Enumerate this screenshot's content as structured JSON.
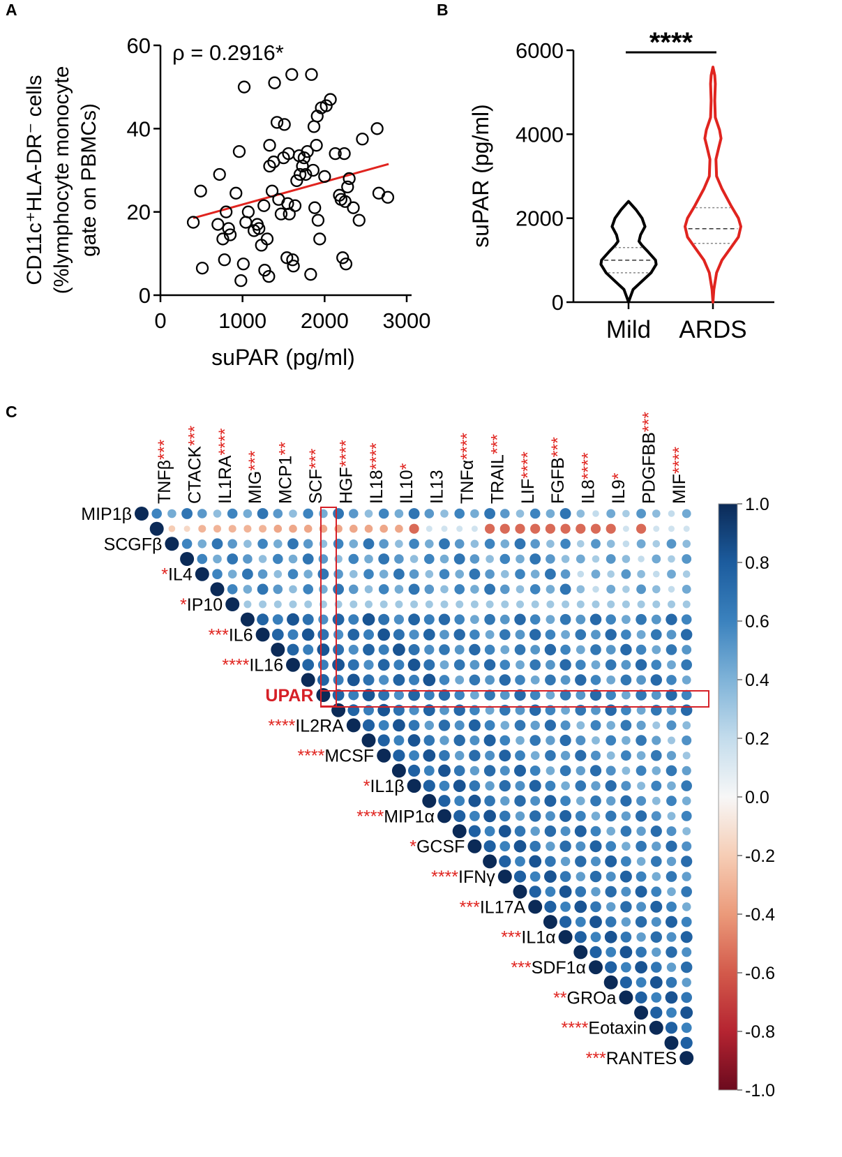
{
  "chart_data": [
    {
      "type": "scatter",
      "panel_label": "A",
      "title": "",
      "annotation": "ρ = 0.2916*",
      "xlabel": "suPAR (pg/ml)",
      "ylabel_line1": "CD11c⁺HLA-DR⁻ cells",
      "ylabel_line2": "(%lymphocyte monocyte",
      "ylabel_line3": "gate on PBMCs)",
      "xlim": [
        0,
        3000
      ],
      "ylim": [
        0,
        60
      ],
      "xticks": [
        "0",
        "1000",
        "2000",
        "3000"
      ],
      "yticks": [
        "0",
        "20",
        "40",
        "60"
      ],
      "points": [
        [
          400,
          17.5
        ],
        [
          490,
          25
        ],
        [
          510,
          6.5
        ],
        [
          700,
          17
        ],
        [
          720,
          29
        ],
        [
          760,
          13.5
        ],
        [
          780,
          8.5
        ],
        [
          800,
          20
        ],
        [
          830,
          16
        ],
        [
          850,
          14.5
        ],
        [
          920,
          24.5
        ],
        [
          960,
          34.5
        ],
        [
          980,
          3.5
        ],
        [
          1010,
          7.5
        ],
        [
          1020,
          50
        ],
        [
          1040,
          17.5
        ],
        [
          1070,
          20
        ],
        [
          1140,
          15.5
        ],
        [
          1180,
          17
        ],
        [
          1200,
          16
        ],
        [
          1230,
          12
        ],
        [
          1260,
          21.5
        ],
        [
          1270,
          6
        ],
        [
          1300,
          13.5
        ],
        [
          1320,
          4.5
        ],
        [
          1330,
          31
        ],
        [
          1330,
          36
        ],
        [
          1360,
          25
        ],
        [
          1380,
          32
        ],
        [
          1390,
          51
        ],
        [
          1420,
          41.5
        ],
        [
          1440,
          23
        ],
        [
          1470,
          19.5
        ],
        [
          1500,
          33
        ],
        [
          1510,
          41
        ],
        [
          1540,
          9
        ],
        [
          1550,
          22
        ],
        [
          1560,
          34
        ],
        [
          1570,
          19.5
        ],
        [
          1600,
          53
        ],
        [
          1610,
          8.5
        ],
        [
          1620,
          7
        ],
        [
          1640,
          21.5
        ],
        [
          1660,
          27.5
        ],
        [
          1690,
          33.5
        ],
        [
          1700,
          29
        ],
        [
          1730,
          31
        ],
        [
          1750,
          33
        ],
        [
          1770,
          29
        ],
        [
          1790,
          34.5
        ],
        [
          1830,
          5
        ],
        [
          1840,
          53
        ],
        [
          1860,
          30
        ],
        [
          1870,
          40.5
        ],
        [
          1880,
          21
        ],
        [
          1900,
          36
        ],
        [
          1910,
          43
        ],
        [
          1920,
          18
        ],
        [
          1940,
          13.5
        ],
        [
          1960,
          45
        ],
        [
          2000,
          28.5
        ],
        [
          2020,
          45.5
        ],
        [
          2070,
          47
        ],
        [
          2130,
          34
        ],
        [
          2180,
          24
        ],
        [
          2200,
          23
        ],
        [
          2220,
          9
        ],
        [
          2240,
          34
        ],
        [
          2250,
          22.5
        ],
        [
          2260,
          7.5
        ],
        [
          2280,
          26
        ],
        [
          2300,
          28
        ],
        [
          2350,
          21
        ],
        [
          2420,
          18
        ],
        [
          2460,
          37.5
        ],
        [
          2640,
          40
        ],
        [
          2660,
          24.5
        ],
        [
          2770,
          23.5
        ]
      ],
      "fit_line": {
        "x": [
          400,
          2780
        ],
        "y": [
          18.5,
          31.5
        ],
        "color": "#e0241f"
      }
    },
    {
      "type": "violin",
      "panel_label": "B",
      "title": "",
      "significance": "****",
      "xlabel": "",
      "ylabel": "suPAR (pg/ml)",
      "ylim": [
        0,
        6000
      ],
      "yticks": [
        "0",
        "2000",
        "4000",
        "6000"
      ],
      "categories": [
        "Mild",
        "ARDS"
      ],
      "series": [
        {
          "name": "Mild",
          "color": "#000000",
          "median": 1000,
          "q1": 700,
          "q3": 1300,
          "min": 0,
          "max": 2400,
          "profile": [
            [
              0,
              0
            ],
            [
              100,
              0.05
            ],
            [
              300,
              0.15
            ],
            [
              500,
              0.45
            ],
            [
              700,
              0.75
            ],
            [
              900,
              0.92
            ],
            [
              1000,
              0.9
            ],
            [
              1200,
              0.65
            ],
            [
              1350,
              0.45
            ],
            [
              1450,
              0.35
            ],
            [
              1600,
              0.4
            ],
            [
              1800,
              0.55
            ],
            [
              2000,
              0.45
            ],
            [
              2200,
              0.25
            ],
            [
              2400,
              0
            ]
          ]
        },
        {
          "name": "ARDS",
          "color": "#e0241f",
          "median": 1750,
          "q1": 1400,
          "q3": 2250,
          "min": 0,
          "max": 5600,
          "profile": [
            [
              0,
              0
            ],
            [
              300,
              0.03
            ],
            [
              700,
              0.12
            ],
            [
              1000,
              0.3
            ],
            [
              1300,
              0.6
            ],
            [
              1550,
              0.85
            ],
            [
              1800,
              0.93
            ],
            [
              2000,
              0.85
            ],
            [
              2300,
              0.6
            ],
            [
              2700,
              0.3
            ],
            [
              3000,
              0.12
            ],
            [
              3400,
              0.1
            ],
            [
              3700,
              0.2
            ],
            [
              3900,
              0.27
            ],
            [
              4100,
              0.22
            ],
            [
              4400,
              0.08
            ],
            [
              4800,
              0.06
            ],
            [
              5200,
              0.08
            ],
            [
              5400,
              0.06
            ],
            [
              5600,
              0
            ]
          ]
        }
      ]
    },
    {
      "type": "heatmap",
      "panel_label": "C",
      "title": "",
      "highlight_label": "UPAR",
      "colorbar": {
        "min": -1.0,
        "max": 1.0,
        "ticks": [
          "1.0",
          "0.8",
          "0.6",
          "0.4",
          "0.2",
          "0.0",
          "-0.2",
          "-0.4",
          "-0.6",
          "-0.8",
          "-1.0"
        ]
      },
      "top_labels": [
        {
          "name": "TNFβ",
          "stars": "***"
        },
        {
          "name": "CTACK",
          "stars": "***"
        },
        {
          "name": "IL1RA",
          "stars": "****"
        },
        {
          "name": "MIG",
          "stars": "***"
        },
        {
          "name": "MCP1",
          "stars": "**"
        },
        {
          "name": "SCF",
          "stars": "***"
        },
        {
          "name": "HGF",
          "stars": "****"
        },
        {
          "name": "IL18",
          "stars": "****"
        },
        {
          "name": "IL10",
          "stars": "*"
        },
        {
          "name": "IL13",
          "stars": ""
        },
        {
          "name": "TNFα",
          "stars": "****"
        },
        {
          "name": "TRAIL",
          "stars": "***"
        },
        {
          "name": "LIF",
          "stars": "****"
        },
        {
          "name": "FGFB",
          "stars": "***"
        },
        {
          "name": "IL8",
          "stars": "****"
        },
        {
          "name": "IL9",
          "stars": "*"
        },
        {
          "name": "PDGFBB",
          "stars": "***"
        },
        {
          "name": "MIF",
          "stars": "****"
        }
      ],
      "left_labels": [
        {
          "name": "MIP1β",
          "stars": ""
        },
        {
          "name": "SCGFβ",
          "stars": ""
        },
        {
          "name": "IL4",
          "stars": "*"
        },
        {
          "name": "IP10",
          "stars": "*"
        },
        {
          "name": "IL6",
          "stars": "***"
        },
        {
          "name": "IL16",
          "stars": "****"
        },
        {
          "name": "UPAR",
          "stars": ""
        },
        {
          "name": "IL2RA",
          "stars": "****"
        },
        {
          "name": "MCSF",
          "stars": "****"
        },
        {
          "name": "IL1β",
          "stars": "*"
        },
        {
          "name": "MIP1α",
          "stars": "****"
        },
        {
          "name": "GCSF",
          "stars": "*"
        },
        {
          "name": "IFNγ",
          "stars": "****"
        },
        {
          "name": "IL17A",
          "stars": "***"
        },
        {
          "name": "IL1α",
          "stars": "***"
        },
        {
          "name": "SDF1α",
          "stars": "***"
        },
        {
          "name": "GROa",
          "stars": "**"
        },
        {
          "name": "Eotaxin",
          "stars": "****"
        },
        {
          "name": "RANTES",
          "stars": "***"
        }
      ]
    }
  ]
}
